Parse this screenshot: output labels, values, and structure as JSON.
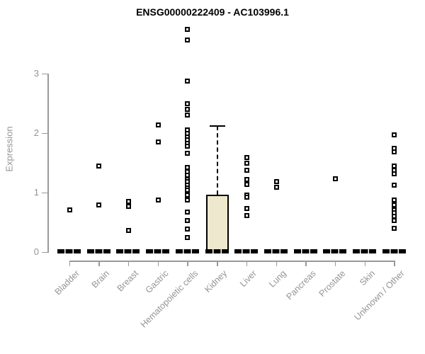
{
  "title": "ENSG00000222409 - AC103996.1",
  "axes": {
    "y_label": "Expression",
    "y_ticks": [
      0,
      1,
      2,
      3
    ],
    "x_categories": [
      "Bladder",
      "Brain",
      "Breast",
      "Gastric",
      "Hematopoietic cells",
      "Kidney",
      "Liver",
      "Lung",
      "Pancreas",
      "Prostate",
      "Skin",
      "Unknown / Other"
    ]
  },
  "colors": {
    "title_text": "#000000",
    "axis_line": "#999999",
    "axis_text": "#949494",
    "point_stroke": "#000000",
    "box_fill": "#ede8ce",
    "median_bar": "#000000"
  },
  "chart_data": {
    "type": "boxplot",
    "title": "ENSG00000222409 - AC103996.1",
    "xlabel": "",
    "ylabel": "Expression",
    "ylim": [
      0,
      3.9
    ],
    "y_ticks": [
      0,
      1,
      2,
      3
    ],
    "grid": false,
    "legend": false,
    "categories": [
      "Bladder",
      "Brain",
      "Breast",
      "Gastric",
      "Hematopoietic cells",
      "Kidney",
      "Liver",
      "Lung",
      "Pancreas",
      "Prostate",
      "Skin",
      "Unknown / Other"
    ],
    "note": "All categories show a thick black median/box bar collapsed at y=0; Kidney additionally shows a filled box with an upper whisker; open-square markers are outlier points.",
    "zero_bar_categories": [
      "Bladder",
      "Brain",
      "Breast",
      "Gastric",
      "Hematopoietic cells",
      "Kidney",
      "Liver",
      "Lung",
      "Pancreas",
      "Prostate",
      "Skin",
      "Unknown / Other"
    ],
    "boxes": [
      {
        "category": "Kidney",
        "whisker_low": 0,
        "q1": 0.02,
        "median": 0.02,
        "q3": 0.96,
        "whisker_high": 2.12,
        "fill": "#ede8ce"
      }
    ],
    "points": [
      {
        "category": "Bladder",
        "values": [
          0.71
        ]
      },
      {
        "category": "Brain",
        "values": [
          1.45,
          0.79
        ]
      },
      {
        "category": "Breast",
        "values": [
          0.85,
          0.77,
          0.36
        ]
      },
      {
        "category": "Gastric",
        "values": [
          2.14,
          1.85,
          0.88
        ]
      },
      {
        "category": "Hematopoietic cells",
        "values": [
          3.74,
          3.56,
          2.87,
          2.49,
          2.4,
          2.3,
          2.05,
          1.99,
          1.94,
          1.89,
          1.83,
          1.78,
          1.66,
          1.42,
          1.35,
          1.29,
          1.22,
          1.18,
          1.13,
          1.08,
          1.04,
          0.96,
          0.87,
          0.67,
          0.53,
          0.39,
          0.25
        ]
      },
      {
        "category": "Kidney",
        "values": []
      },
      {
        "category": "Liver",
        "values": [
          1.59,
          1.49,
          1.38,
          1.22,
          1.14,
          0.96,
          0.92,
          0.73,
          0.61
        ]
      },
      {
        "category": "Lung",
        "values": [
          1.19,
          1.09
        ]
      },
      {
        "category": "Pancreas",
        "values": []
      },
      {
        "category": "Prostate",
        "values": [
          1.23
        ]
      },
      {
        "category": "Skin",
        "values": []
      },
      {
        "category": "Unknown / Other",
        "values": [
          1.97,
          1.75,
          1.68,
          1.45,
          1.38,
          1.32,
          1.13,
          0.87,
          0.79,
          0.71,
          0.66,
          0.6,
          0.53,
          0.4
        ]
      }
    ]
  }
}
